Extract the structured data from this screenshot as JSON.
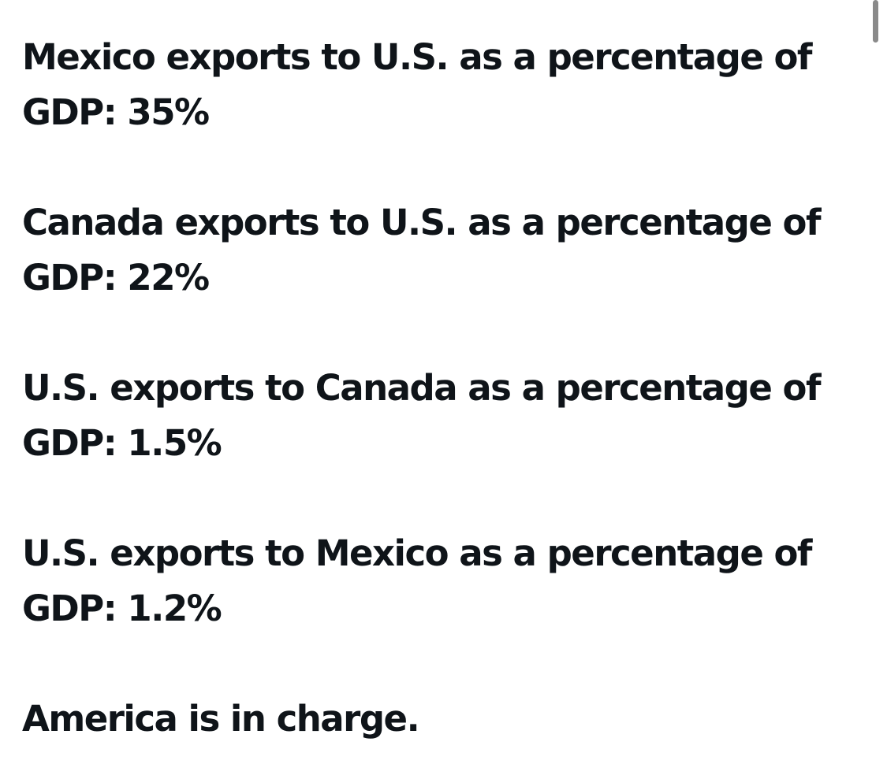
{
  "post": {
    "paragraphs": [
      {
        "line1": "Mexico exports to U.S. as a percentage of",
        "line2": "GDP: 35%"
      },
      {
        "line1": "Canada exports to U.S. as a percentage of",
        "line2": "GDP: 22%"
      },
      {
        "line1": "U.S. exports to Canada as a percentage of",
        "line2": "GDP: 1.5%"
      },
      {
        "line1": "U.S. exports to Mexico as a percentage of",
        "line2": "GDP: 1.2%"
      }
    ],
    "closing": "America is in charge."
  },
  "colors": {
    "text": "#0f1419",
    "background": "#ffffff",
    "scrollbar": "#8a8a8a"
  }
}
